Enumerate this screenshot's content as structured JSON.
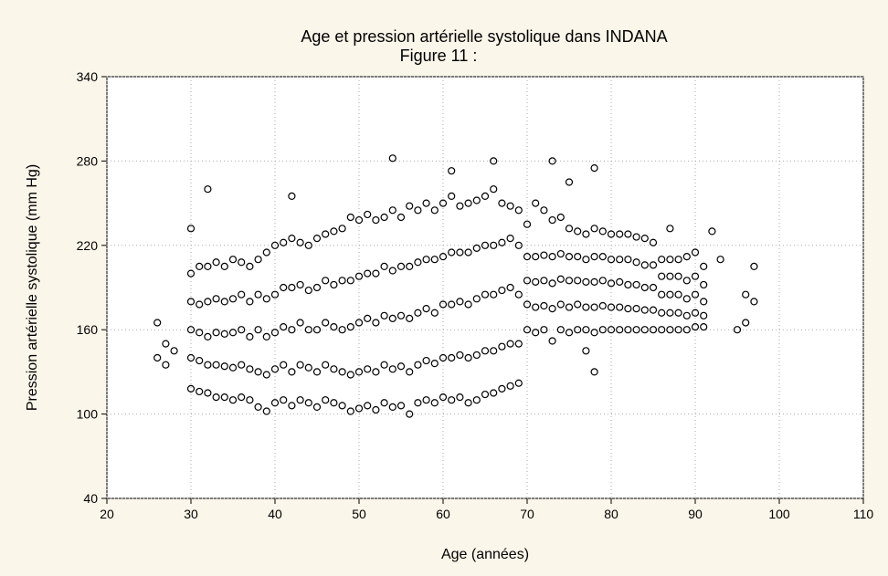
{
  "chart_data": {
    "type": "scatter",
    "title": "Age et pression artérielle systolique dans INDANA",
    "subtitle": "Figure 11 :",
    "x_label": "Age (années)",
    "y_label": "Pression artérielle systolique (mm Hg)",
    "xlim": [
      20,
      110
    ],
    "xticks": [
      20,
      30,
      40,
      50,
      60,
      70,
      80,
      90,
      100,
      110
    ],
    "ylim": [
      40,
      340
    ],
    "yticks": [
      40,
      100,
      160,
      220,
      280,
      340
    ],
    "grid": true,
    "color": "#000000",
    "x": [
      30,
      30,
      30,
      30,
      30,
      31,
      31,
      31,
      31,
      31,
      32,
      32,
      32,
      32,
      32,
      33,
      33,
      33,
      33,
      33,
      34,
      34,
      34,
      34,
      34,
      35,
      35,
      35,
      35,
      35,
      36,
      36,
      36,
      36,
      36,
      37,
      37,
      37,
      37,
      37,
      38,
      38,
      38,
      38,
      38,
      39,
      39,
      39,
      39,
      39,
      40,
      40,
      40,
      40,
      40,
      41,
      41,
      41,
      41,
      41,
      42,
      42,
      42,
      42,
      42,
      43,
      43,
      43,
      43,
      43,
      44,
      44,
      44,
      44,
      44,
      45,
      45,
      45,
      45,
      45,
      46,
      46,
      46,
      46,
      46,
      47,
      47,
      47,
      47,
      47,
      48,
      48,
      48,
      48,
      48,
      49,
      49,
      49,
      49,
      49,
      50,
      50,
      50,
      50,
      50,
      51,
      51,
      51,
      51,
      51,
      52,
      52,
      52,
      52,
      52,
      53,
      53,
      53,
      53,
      53,
      54,
      54,
      54,
      54,
      54,
      55,
      55,
      55,
      55,
      55,
      56,
      56,
      56,
      56,
      56,
      57,
      57,
      57,
      57,
      57,
      58,
      58,
      58,
      58,
      58,
      59,
      59,
      59,
      59,
      59,
      60,
      60,
      60,
      60,
      60,
      61,
      61,
      61,
      61,
      61,
      62,
      62,
      62,
      62,
      62,
      63,
      63,
      63,
      63,
      63,
      64,
      64,
      64,
      64,
      64,
      65,
      65,
      65,
      65,
      65,
      66,
      66,
      66,
      66,
      66,
      67,
      67,
      67,
      67,
      67,
      68,
      68,
      68,
      68,
      68,
      69,
      69,
      69,
      69,
      69,
      70,
      70,
      70,
      70,
      70,
      71,
      71,
      71,
      71,
      71,
      72,
      72,
      72,
      72,
      72,
      73,
      73,
      73,
      73,
      73,
      74,
      74,
      74,
      74,
      74,
      75,
      75,
      75,
      75,
      75,
      76,
      76,
      76,
      76,
      76,
      77,
      77,
      77,
      77,
      77,
      78,
      78,
      78,
      78,
      78,
      79,
      79,
      79,
      79,
      79,
      80,
      80,
      80,
      80,
      80,
      81,
      81,
      81,
      81,
      81,
      82,
      82,
      82,
      82,
      82,
      83,
      83,
      83,
      83,
      83,
      84,
      84,
      84,
      84,
      84,
      85,
      85,
      85,
      85,
      85,
      86,
      86,
      86,
      86,
      86,
      87,
      87,
      87,
      87,
      87,
      88,
      88,
      88,
      88,
      88,
      89,
      89,
      89,
      89,
      89,
      90,
      90,
      90,
      90,
      90,
      91,
      91,
      91,
      91,
      91,
      26,
      26,
      27,
      27,
      28,
      30,
      32,
      42,
      54,
      61,
      66,
      73,
      78,
      78,
      77,
      95,
      96,
      97,
      97,
      92,
      75,
      87,
      93,
      96
    ],
    "values": [
      118,
      140,
      160,
      180,
      200,
      116,
      138,
      158,
      178,
      205,
      115,
      135,
      155,
      180,
      205,
      112,
      135,
      158,
      182,
      208,
      112,
      134,
      157,
      180,
      205,
      110,
      133,
      158,
      182,
      210,
      112,
      135,
      160,
      185,
      208,
      110,
      132,
      155,
      180,
      205,
      105,
      130,
      160,
      185,
      210,
      102,
      128,
      155,
      182,
      215,
      108,
      132,
      158,
      185,
      220,
      110,
      135,
      162,
      190,
      222,
      106,
      130,
      160,
      190,
      225,
      110,
      135,
      165,
      192,
      222,
      108,
      133,
      160,
      188,
      220,
      105,
      130,
      160,
      190,
      225,
      110,
      135,
      165,
      195,
      228,
      108,
      132,
      162,
      192,
      230,
      106,
      130,
      160,
      195,
      232,
      102,
      128,
      162,
      195,
      240,
      104,
      130,
      165,
      198,
      238,
      106,
      132,
      168,
      200,
      242,
      103,
      130,
      165,
      200,
      238,
      108,
      135,
      170,
      205,
      240,
      105,
      132,
      168,
      202,
      245,
      106,
      134,
      170,
      205,
      240,
      100,
      130,
      168,
      205,
      248,
      108,
      135,
      172,
      208,
      245,
      110,
      138,
      175,
      210,
      250,
      108,
      136,
      172,
      210,
      245,
      112,
      140,
      178,
      212,
      250,
      110,
      140,
      178,
      215,
      255,
      112,
      142,
      180,
      215,
      248,
      108,
      140,
      178,
      215,
      250,
      110,
      142,
      182,
      218,
      252,
      114,
      145,
      185,
      220,
      255,
      115,
      145,
      185,
      220,
      260,
      118,
      148,
      188,
      222,
      250,
      120,
      150,
      190,
      225,
      248,
      122,
      150,
      185,
      220,
      245,
      160,
      178,
      195,
      212,
      235,
      158,
      176,
      194,
      212,
      250,
      160,
      177,
      195,
      213,
      245,
      152,
      175,
      193,
      212,
      238,
      160,
      178,
      196,
      214,
      240,
      158,
      176,
      195,
      212,
      232,
      160,
      178,
      195,
      212,
      230,
      160,
      176,
      194,
      210,
      228,
      158,
      176,
      194,
      212,
      232,
      160,
      177,
      195,
      212,
      230,
      160,
      176,
      193,
      210,
      228,
      160,
      176,
      194,
      210,
      228,
      160,
      175,
      192,
      210,
      228,
      160,
      175,
      192,
      208,
      226,
      160,
      174,
      190,
      206,
      225,
      160,
      174,
      190,
      206,
      222,
      160,
      172,
      185,
      198,
      210,
      160,
      172,
      185,
      198,
      210,
      160,
      172,
      185,
      198,
      210,
      160,
      170,
      182,
      195,
      212,
      162,
      172,
      185,
      198,
      215,
      162,
      170,
      180,
      192,
      205,
      165,
      140,
      150,
      135,
      145,
      232,
      260,
      255,
      282,
      273,
      280,
      280,
      275,
      130,
      145,
      160,
      185,
      180,
      205,
      230,
      265,
      232,
      210,
      165
    ]
  }
}
